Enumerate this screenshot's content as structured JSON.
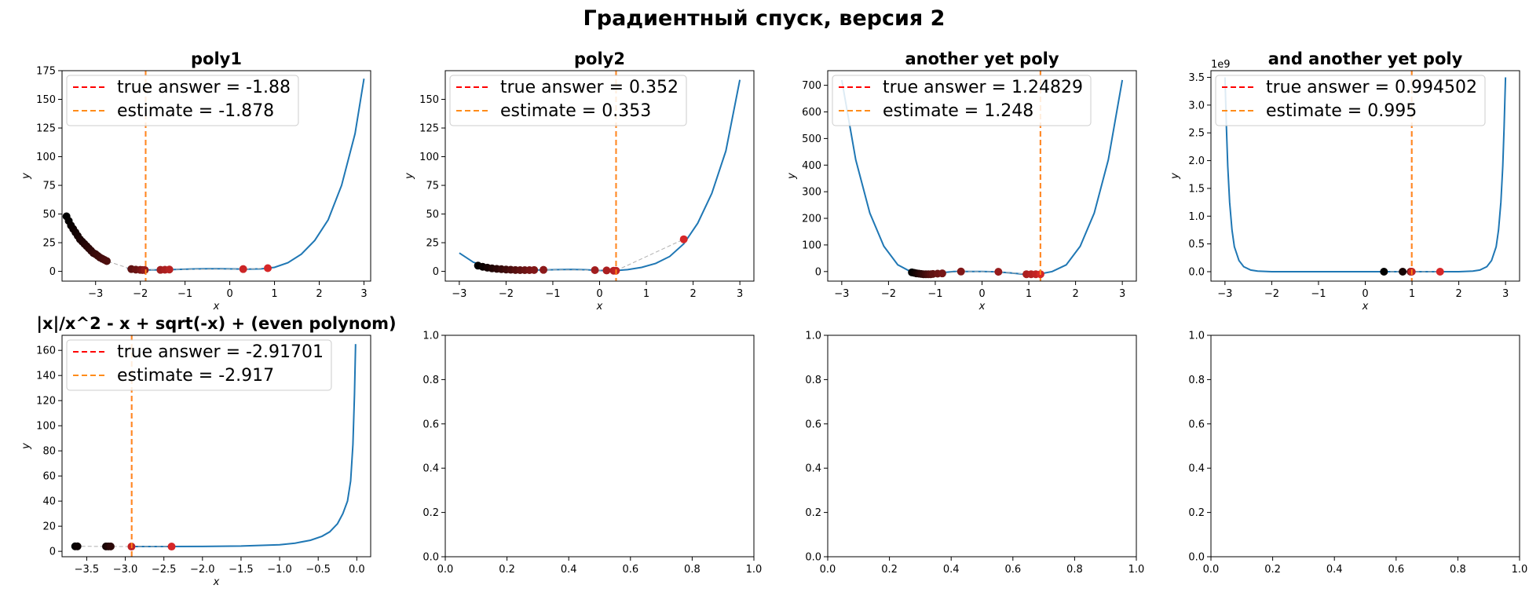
{
  "figure": {
    "suptitle": "Градиентный спуск, версия 2"
  },
  "colors": {
    "curve": "#1f77b4",
    "true_line": "#ff0000",
    "estimate_line": "#ff8c1a",
    "path_line": "#b0b0b0",
    "start_points": "#000000",
    "end_points": "#d62728",
    "axis": "#000000"
  },
  "chart_data": [
    {
      "type": "line",
      "title": "poly1",
      "xlabel": "x",
      "ylabel": "y",
      "xlim": [
        -3.75,
        3.15
      ],
      "ylim": [
        -8.5,
        175
      ],
      "xticks": [
        -3,
        -2,
        -1,
        0,
        1,
        2,
        3
      ],
      "xtick_labels": [
        "−3",
        "−2",
        "−1",
        "0",
        "1",
        "2",
        "3"
      ],
      "yticks": [
        0,
        25,
        50,
        75,
        100,
        125,
        150,
        175
      ],
      "ytick_labels": [
        "0",
        "25",
        "50",
        "75",
        "100",
        "125",
        "150",
        "175"
      ],
      "offset_text": "",
      "curve_x": [
        -2.3,
        -2.0,
        -1.7,
        -1.4,
        -1.1,
        -0.8,
        -0.5,
        -0.2,
        0.1,
        0.4,
        0.7,
        1.0,
        1.3,
        1.6,
        1.9,
        2.2,
        2.5,
        2.8,
        3.0
      ],
      "curve_y": [
        2.8,
        1.3,
        1.2,
        1.4,
        1.8,
        2.1,
        2.3,
        2.3,
        2.1,
        1.9,
        2.2,
        3.5,
        7.5,
        15,
        27,
        45,
        75,
        120,
        168
      ],
      "true_answer": -1.88,
      "estimate": -1.878,
      "legend": [
        "true answer = -1.88",
        "estimate = -1.878"
      ],
      "legend_loc": "upper left",
      "path_points": [
        {
          "x": -3.65,
          "y": 48,
          "c": 0
        },
        {
          "x": -3.6,
          "y": 44,
          "c": 0.02
        },
        {
          "x": -3.55,
          "y": 40,
          "c": 0.04
        },
        {
          "x": -3.5,
          "y": 37,
          "c": 0.06
        },
        {
          "x": -3.45,
          "y": 34,
          "c": 0.08
        },
        {
          "x": -3.4,
          "y": 31,
          "c": 0.1
        },
        {
          "x": -3.35,
          "y": 28,
          "c": 0.12
        },
        {
          "x": -3.3,
          "y": 26,
          "c": 0.14
        },
        {
          "x": -3.25,
          "y": 24,
          "c": 0.16
        },
        {
          "x": -3.2,
          "y": 22,
          "c": 0.18
        },
        {
          "x": -3.15,
          "y": 20,
          "c": 0.2
        },
        {
          "x": -3.1,
          "y": 18,
          "c": 0.22
        },
        {
          "x": -3.05,
          "y": 16,
          "c": 0.24
        },
        {
          "x": -3.0,
          "y": 15,
          "c": 0.26
        },
        {
          "x": -2.95,
          "y": 13.5,
          "c": 0.28
        },
        {
          "x": -2.9,
          "y": 12,
          "c": 0.3
        },
        {
          "x": -2.85,
          "y": 11,
          "c": 0.32
        },
        {
          "x": -2.8,
          "y": 10,
          "c": 0.34
        },
        {
          "x": -2.75,
          "y": 9,
          "c": 0.36
        },
        {
          "x": -2.2,
          "y": 2,
          "c": 0.45
        },
        {
          "x": -2.1,
          "y": 1.5,
          "c": 0.5
        },
        {
          "x": -2.0,
          "y": 1.3,
          "c": 0.55
        },
        {
          "x": -1.95,
          "y": 1.2,
          "c": 0.6
        },
        {
          "x": -1.9,
          "y": 1.2,
          "c": 0.7
        },
        {
          "x": -1.55,
          "y": 1.3,
          "c": 0.75
        },
        {
          "x": -1.45,
          "y": 1.4,
          "c": 0.8
        },
        {
          "x": -1.35,
          "y": 1.6,
          "c": 0.85
        },
        {
          "x": 0.3,
          "y": 2.0,
          "c": 0.95
        },
        {
          "x": 0.85,
          "y": 2.8,
          "c": 1
        }
      ]
    },
    {
      "type": "line",
      "title": "poly2",
      "xlabel": "x",
      "ylabel": "y",
      "xlim": [
        -3.3,
        3.3
      ],
      "ylim": [
        -8.5,
        175
      ],
      "xticks": [
        -3,
        -2,
        -1,
        0,
        1,
        2,
        3
      ],
      "xtick_labels": [
        "−3",
        "−2",
        "−1",
        "0",
        "1",
        "2",
        "3"
      ],
      "yticks": [
        0,
        25,
        50,
        75,
        100,
        125,
        150
      ],
      "ytick_labels": [
        "0",
        "25",
        "50",
        "75",
        "100",
        "125",
        "150"
      ],
      "offset_text": "",
      "curve_x": [
        -3.0,
        -2.7,
        -2.4,
        -2.1,
        -1.8,
        -1.5,
        -1.2,
        -0.9,
        -0.6,
        -0.3,
        0.0,
        0.3,
        0.6,
        0.9,
        1.2,
        1.5,
        1.8,
        2.1,
        2.4,
        2.7,
        3.0
      ],
      "curve_y": [
        16,
        8,
        4,
        2,
        1.2,
        1.1,
        1.3,
        1.5,
        1.7,
        1.4,
        0.8,
        0.6,
        1.5,
        3.5,
        7,
        13,
        24,
        42,
        68,
        105,
        167
      ],
      "true_answer": 0.352,
      "estimate": 0.353,
      "legend": [
        "true answer = 0.352",
        "estimate = 0.353"
      ],
      "legend_loc": "upper left",
      "path_points": [
        {
          "x": -2.6,
          "y": 5,
          "c": 0
        },
        {
          "x": -2.5,
          "y": 4,
          "c": 0.05
        },
        {
          "x": -2.4,
          "y": 3.2,
          "c": 0.1
        },
        {
          "x": -2.3,
          "y": 2.6,
          "c": 0.15
        },
        {
          "x": -2.2,
          "y": 2.2,
          "c": 0.2
        },
        {
          "x": -2.1,
          "y": 1.9,
          "c": 0.25
        },
        {
          "x": -2.0,
          "y": 1.6,
          "c": 0.3
        },
        {
          "x": -1.9,
          "y": 1.4,
          "c": 0.35
        },
        {
          "x": -1.8,
          "y": 1.2,
          "c": 0.4
        },
        {
          "x": -1.7,
          "y": 1.1,
          "c": 0.45
        },
        {
          "x": -1.6,
          "y": 1.1,
          "c": 0.5
        },
        {
          "x": -1.5,
          "y": 1.1,
          "c": 0.55
        },
        {
          "x": -1.4,
          "y": 1.2,
          "c": 0.6
        },
        {
          "x": -1.2,
          "y": 1.3,
          "c": 0.65
        },
        {
          "x": -0.1,
          "y": 1.1,
          "c": 0.75
        },
        {
          "x": 0.15,
          "y": 0.8,
          "c": 0.8
        },
        {
          "x": 0.3,
          "y": 0.6,
          "c": 0.85
        },
        {
          "x": 0.35,
          "y": 0.6,
          "c": 0.9
        },
        {
          "x": 1.8,
          "y": 28,
          "c": 1
        }
      ]
    },
    {
      "type": "line",
      "title": "another yet poly",
      "xlabel": "x",
      "ylabel": "y",
      "xlim": [
        -3.3,
        3.3
      ],
      "ylim": [
        -36,
        755
      ],
      "xticks": [
        -3,
        -2,
        -1,
        0,
        1,
        2,
        3
      ],
      "xtick_labels": [
        "−3",
        "−2",
        "−1",
        "0",
        "1",
        "2",
        "3"
      ],
      "yticks": [
        0,
        100,
        200,
        300,
        400,
        500,
        600,
        700
      ],
      "ytick_labels": [
        "0",
        "100",
        "200",
        "300",
        "400",
        "500",
        "600",
        "700"
      ],
      "offset_text": "",
      "curve_x": [
        -3.0,
        -2.7,
        -2.4,
        -2.1,
        -1.8,
        -1.5,
        -1.2,
        -0.9,
        -0.6,
        -0.3,
        0.0,
        0.3,
        0.6,
        0.9,
        1.2,
        1.5,
        1.8,
        2.1,
        2.4,
        2.7,
        3.0
      ],
      "curve_y": [
        720,
        420,
        220,
        95,
        25,
        -3,
        -10,
        -5,
        0,
        0,
        0,
        -1,
        -5,
        -10,
        -10,
        0,
        25,
        95,
        220,
        420,
        720
      ],
      "true_answer": 1.24829,
      "estimate": 1.248,
      "legend": [
        "true answer = 1.24829",
        "estimate = 1.248"
      ],
      "legend_loc": "upper left",
      "path_points": [
        {
          "x": -1.5,
          "y": -3,
          "c": 0
        },
        {
          "x": -1.45,
          "y": -5,
          "c": 0.05
        },
        {
          "x": -1.4,
          "y": -7,
          "c": 0.1
        },
        {
          "x": -1.35,
          "y": -8,
          "c": 0.15
        },
        {
          "x": -1.3,
          "y": -9,
          "c": 0.2
        },
        {
          "x": -1.25,
          "y": -10,
          "c": 0.25
        },
        {
          "x": -1.2,
          "y": -10,
          "c": 0.3
        },
        {
          "x": -1.15,
          "y": -10,
          "c": 0.35
        },
        {
          "x": -1.1,
          "y": -10,
          "c": 0.4
        },
        {
          "x": -1.05,
          "y": -9,
          "c": 0.45
        },
        {
          "x": -0.95,
          "y": -8,
          "c": 0.5
        },
        {
          "x": -0.85,
          "y": -7,
          "c": 0.55
        },
        {
          "x": -0.45,
          "y": 0,
          "c": 0.6
        },
        {
          "x": 0.35,
          "y": -1,
          "c": 0.7
        },
        {
          "x": 0.95,
          "y": -10,
          "c": 0.8
        },
        {
          "x": 1.05,
          "y": -10,
          "c": 0.85
        },
        {
          "x": 1.15,
          "y": -10,
          "c": 0.9
        },
        {
          "x": 1.25,
          "y": -10,
          "c": 1
        }
      ]
    },
    {
      "type": "line",
      "title": "and another yet poly",
      "xlabel": "x",
      "ylabel": "y",
      "xlim": [
        -3.3,
        3.3
      ],
      "ylim": [
        -0.17,
        3.62
      ],
      "xticks": [
        -3,
        -2,
        -1,
        0,
        1,
        2,
        3
      ],
      "xtick_labels": [
        "−3",
        "−2",
        "−1",
        "0",
        "1",
        "2",
        "3"
      ],
      "yticks": [
        0.0,
        0.5,
        1.0,
        1.5,
        2.0,
        2.5,
        3.0,
        3.5
      ],
      "ytick_labels": [
        "0.0",
        "0.5",
        "1.0",
        "1.5",
        "2.0",
        "2.5",
        "3.0",
        "3.5"
      ],
      "offset_text": "1e9",
      "curve_x": [
        -3.0,
        -2.97,
        -2.94,
        -2.9,
        -2.85,
        -2.8,
        -2.7,
        -2.6,
        -2.45,
        -2.3,
        -2.0,
        0,
        2.0,
        2.3,
        2.45,
        2.6,
        2.7,
        2.8,
        2.85,
        2.9,
        2.94,
        2.97,
        3.0
      ],
      "curve_y": [
        3.5,
        2.6,
        1.9,
        1.25,
        0.75,
        0.45,
        0.2,
        0.09,
        0.03,
        0.01,
        0.0,
        0.0,
        0.0,
        0.01,
        0.03,
        0.09,
        0.2,
        0.45,
        0.75,
        1.25,
        1.9,
        2.6,
        3.5
      ],
      "true_answer": 0.994502,
      "estimate": 0.995,
      "legend": [
        "true answer = 0.994502",
        "estimate = 0.995"
      ],
      "legend_loc": "upper left",
      "path_points": [
        {
          "x": 0.4,
          "y": 0.0,
          "c": 0
        },
        {
          "x": 0.8,
          "y": 0.0,
          "c": 0.1
        },
        {
          "x": 0.97,
          "y": 0.0,
          "c": 0.5
        },
        {
          "x": 0.995,
          "y": 0.0,
          "c": 0.9
        },
        {
          "x": 1.6,
          "y": 0.0,
          "c": 1
        }
      ]
    },
    {
      "type": "line",
      "title": "|x|/x^2 - x + sqrt(-x) + (even polynom)",
      "xlabel": "x",
      "ylabel": "y",
      "xlim": [
        -3.82,
        0.18
      ],
      "ylim": [
        -4.3,
        172
      ],
      "xticks": [
        -3.5,
        -3.0,
        -2.5,
        -2.0,
        -1.5,
        -1.0,
        -0.5,
        0.0
      ],
      "xtick_labels": [
        "−3.5",
        "−3.0",
        "−2.5",
        "−2.0",
        "−1.5",
        "−1.0",
        "−0.5",
        "0.0"
      ],
      "yticks": [
        0,
        20,
        40,
        60,
        80,
        100,
        120,
        140,
        160
      ],
      "ytick_labels": [
        "0",
        "20",
        "40",
        "60",
        "80",
        "100",
        "120",
        "140",
        "160"
      ],
      "offset_text": "",
      "curve_x": [
        -2.95,
        -2.5,
        -2.0,
        -1.5,
        -1.0,
        -0.8,
        -0.6,
        -0.45,
        -0.35,
        -0.25,
        -0.18,
        -0.12,
        -0.08,
        -0.05,
        -0.03,
        -0.015
      ],
      "curve_y": [
        3.8,
        3.8,
        3.9,
        4.2,
        5.2,
        6.5,
        8.8,
        12,
        15.5,
        22,
        30,
        40,
        56,
        85,
        125,
        165
      ],
      "true_answer": -2.91701,
      "estimate": -2.917,
      "legend": [
        "true answer = -2.91701",
        "estimate = -2.917"
      ],
      "legend_loc": "upper left",
      "path_points": [
        {
          "x": -3.65,
          "y": 4.0,
          "c": 0
        },
        {
          "x": -3.62,
          "y": 4.0,
          "c": 0.05
        },
        {
          "x": -3.25,
          "y": 3.9,
          "c": 0.1
        },
        {
          "x": -3.22,
          "y": 3.9,
          "c": 0.15
        },
        {
          "x": -3.19,
          "y": 3.9,
          "c": 0.2
        },
        {
          "x": -2.92,
          "y": 3.8,
          "c": 0.9
        },
        {
          "x": -2.4,
          "y": 3.8,
          "c": 1
        }
      ]
    },
    {
      "type": "line",
      "title": "",
      "xlabel": "",
      "ylabel": "",
      "xlim": [
        0,
        1
      ],
      "ylim": [
        0,
        1
      ],
      "xticks": [
        0.0,
        0.2,
        0.4,
        0.6,
        0.8,
        1.0
      ],
      "xtick_labels": [
        "0.0",
        "0.2",
        "0.4",
        "0.6",
        "0.8",
        "1.0"
      ],
      "yticks": [
        0.0,
        0.2,
        0.4,
        0.6,
        0.8,
        1.0
      ],
      "ytick_labels": [
        "0.0",
        "0.2",
        "0.4",
        "0.6",
        "0.8",
        "1.0"
      ],
      "offset_text": ""
    },
    {
      "type": "line",
      "title": "",
      "xlabel": "",
      "ylabel": "",
      "xlim": [
        0,
        1
      ],
      "ylim": [
        0,
        1
      ],
      "xticks": [
        0.0,
        0.2,
        0.4,
        0.6,
        0.8,
        1.0
      ],
      "xtick_labels": [
        "0.0",
        "0.2",
        "0.4",
        "0.6",
        "0.8",
        "1.0"
      ],
      "yticks": [
        0.0,
        0.2,
        0.4,
        0.6,
        0.8,
        1.0
      ],
      "ytick_labels": [
        "0.0",
        "0.2",
        "0.4",
        "0.6",
        "0.8",
        "1.0"
      ],
      "offset_text": ""
    },
    {
      "type": "line",
      "title": "",
      "xlabel": "",
      "ylabel": "",
      "xlim": [
        0,
        1
      ],
      "ylim": [
        0,
        1
      ],
      "xticks": [
        0.0,
        0.2,
        0.4,
        0.6,
        0.8,
        1.0
      ],
      "xtick_labels": [
        "0.0",
        "0.2",
        "0.4",
        "0.6",
        "0.8",
        "1.0"
      ],
      "yticks": [
        0.0,
        0.2,
        0.4,
        0.6,
        0.8,
        1.0
      ],
      "ytick_labels": [
        "0.0",
        "0.2",
        "0.4",
        "0.6",
        "0.8",
        "1.0"
      ],
      "offset_text": ""
    }
  ]
}
